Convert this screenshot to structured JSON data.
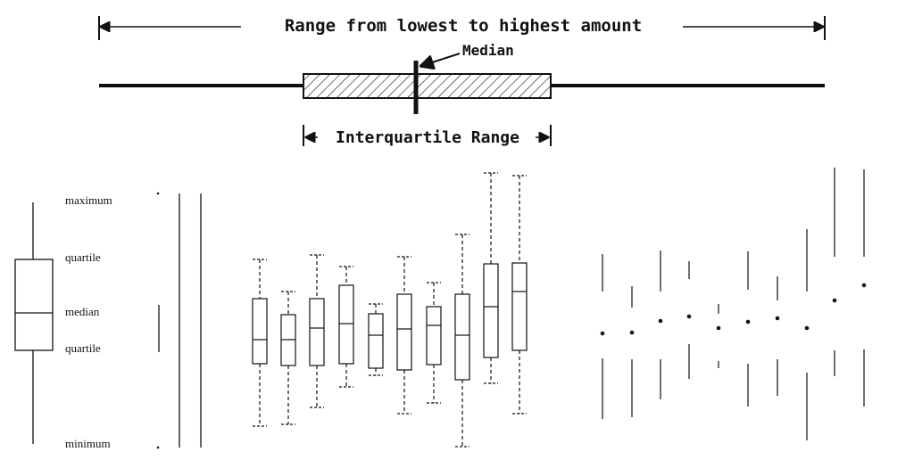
{
  "top": {
    "range_label": "Range from lowest to highest amount",
    "median_label": "Median",
    "iqr_label": "Interquartile Range"
  },
  "legend": {
    "maximum": "maximum",
    "upper_quartile": "quartile",
    "median": "median",
    "lower_quartile": "quartile",
    "minimum": "minimum"
  }
}
